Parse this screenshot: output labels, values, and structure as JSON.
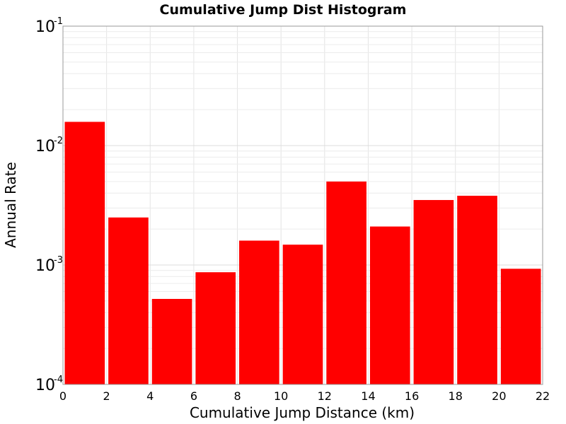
{
  "chart_data": {
    "type": "bar",
    "title": "Cumulative Jump Dist Histogram",
    "xlabel": "Cumulative Jump Distance (km)",
    "ylabel": "Annual Rate",
    "xlim": [
      0,
      22
    ],
    "ylim": [
      0.0001,
      0.1
    ],
    "yscale": "log",
    "grid": true,
    "x_ticks": [
      "0",
      "2",
      "4",
      "6",
      "8",
      "10",
      "12",
      "14",
      "16",
      "18",
      "20",
      "22"
    ],
    "y_ticks": [
      {
        "base": "10",
        "exp": "-4",
        "value": 0.0001
      },
      {
        "base": "10",
        "exp": "-3",
        "value": 0.001
      },
      {
        "base": "10",
        "exp": "-2",
        "value": 0.01
      },
      {
        "base": "10",
        "exp": "-1",
        "value": 0.1
      }
    ],
    "bar_color": "#ff0000",
    "bars": [
      {
        "x0": 0,
        "x1": 2,
        "value": 0.0158
      },
      {
        "x0": 2,
        "x1": 4,
        "value": 0.0025
      },
      {
        "x0": 4,
        "x1": 6,
        "value": 0.00052
      },
      {
        "x0": 6,
        "x1": 8,
        "value": 0.00087
      },
      {
        "x0": 8,
        "x1": 10,
        "value": 0.0016
      },
      {
        "x0": 10,
        "x1": 12,
        "value": 0.00148
      },
      {
        "x0": 12,
        "x1": 14,
        "value": 0.005
      },
      {
        "x0": 14,
        "x1": 16,
        "value": 0.0021
      },
      {
        "x0": 16,
        "x1": 18,
        "value": 0.0035
      },
      {
        "x0": 18,
        "x1": 20,
        "value": 0.0038
      },
      {
        "x0": 20,
        "x1": 22,
        "value": 0.00093
      }
    ]
  }
}
